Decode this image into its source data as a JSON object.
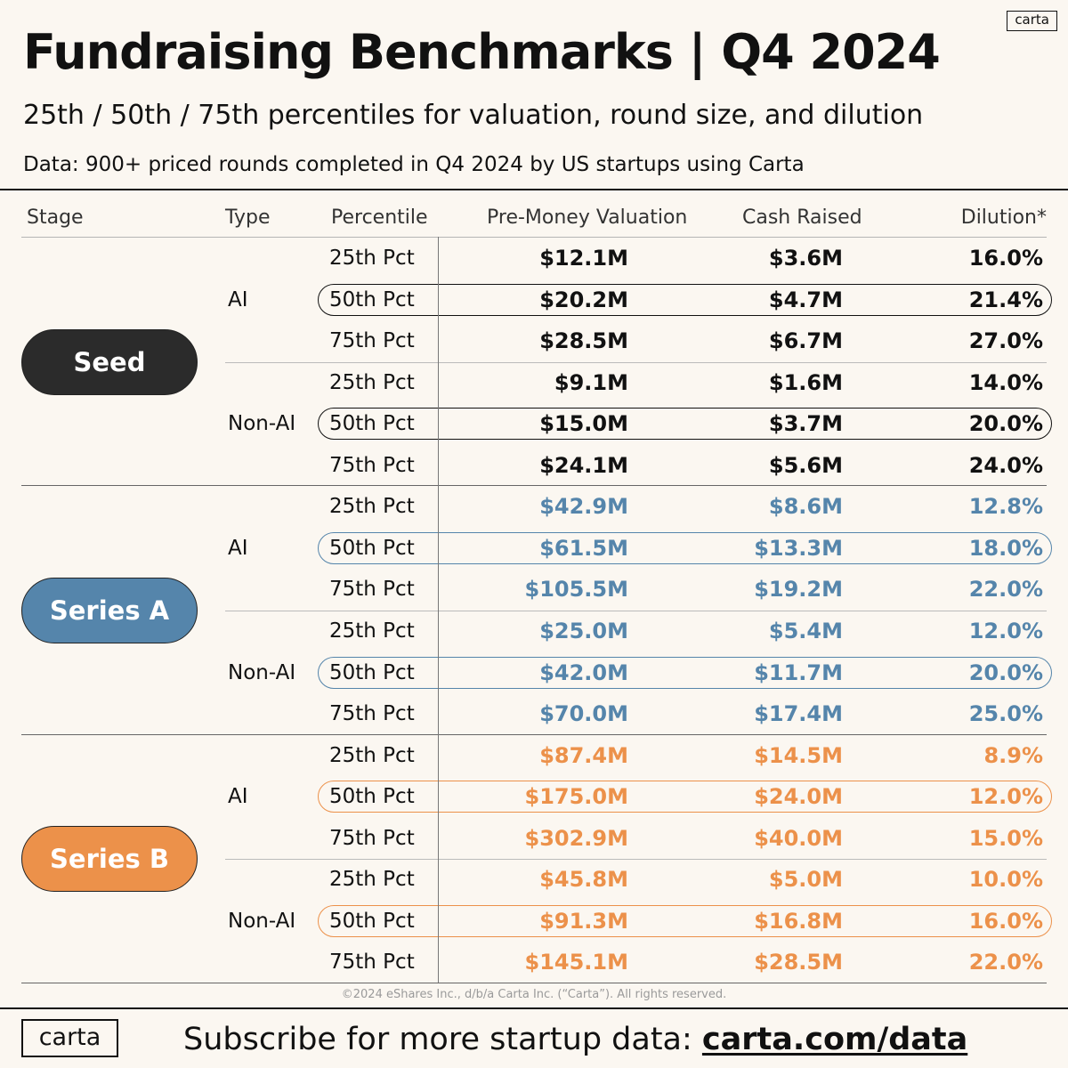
{
  "logo_text": "carta",
  "title": "Fundraising Benchmarks | Q4 2024",
  "subtitle": "25th / 50th / 75th percentiles for valuation, round size, and dilution",
  "source": "Data: 900+ priced rounds completed in Q4 2024 by US startups using Carta",
  "columns": {
    "stage": "Stage",
    "type": "Type",
    "percentile": "Percentile",
    "valuation": "Pre-Money Valuation",
    "cash": "Cash Raised",
    "dilution": "Dilution*"
  },
  "colors": {
    "seed": "#2b2b2b",
    "series_a": "#5585ab",
    "series_b": "#ec914a",
    "text": "#111111"
  },
  "chart_data": {
    "type": "table",
    "title": "Fundraising Benchmarks | Q4 2024",
    "columns": [
      "Stage",
      "Type",
      "Percentile",
      "Pre-Money Valuation",
      "Cash Raised",
      "Dilution*"
    ],
    "stages": [
      {
        "name": "Seed",
        "groups": [
          {
            "type": "AI",
            "rows": [
              {
                "pct": "25th Pct",
                "valuation": "$12.1M",
                "cash": "$3.6M",
                "dilution": "16.0%"
              },
              {
                "pct": "50th Pct",
                "valuation": "$20.2M",
                "cash": "$4.7M",
                "dilution": "21.4%"
              },
              {
                "pct": "75th Pct",
                "valuation": "$28.5M",
                "cash": "$6.7M",
                "dilution": "27.0%"
              }
            ]
          },
          {
            "type": "Non-AI",
            "rows": [
              {
                "pct": "25th Pct",
                "valuation": "$9.1M",
                "cash": "$1.6M",
                "dilution": "14.0%"
              },
              {
                "pct": "50th Pct",
                "valuation": "$15.0M",
                "cash": "$3.7M",
                "dilution": "20.0%"
              },
              {
                "pct": "75th Pct",
                "valuation": "$24.1M",
                "cash": "$5.6M",
                "dilution": "24.0%"
              }
            ]
          }
        ]
      },
      {
        "name": "Series A",
        "groups": [
          {
            "type": "AI",
            "rows": [
              {
                "pct": "25th Pct",
                "valuation": "$42.9M",
                "cash": "$8.6M",
                "dilution": "12.8%"
              },
              {
                "pct": "50th Pct",
                "valuation": "$61.5M",
                "cash": "$13.3M",
                "dilution": "18.0%"
              },
              {
                "pct": "75th Pct",
                "valuation": "$105.5M",
                "cash": "$19.2M",
                "dilution": "22.0%"
              }
            ]
          },
          {
            "type": "Non-AI",
            "rows": [
              {
                "pct": "25th Pct",
                "valuation": "$25.0M",
                "cash": "$5.4M",
                "dilution": "12.0%"
              },
              {
                "pct": "50th Pct",
                "valuation": "$42.0M",
                "cash": "$11.7M",
                "dilution": "20.0%"
              },
              {
                "pct": "75th Pct",
                "valuation": "$70.0M",
                "cash": "$17.4M",
                "dilution": "25.0%"
              }
            ]
          }
        ]
      },
      {
        "name": "Series B",
        "groups": [
          {
            "type": "AI",
            "rows": [
              {
                "pct": "25th Pct",
                "valuation": "$87.4M",
                "cash": "$14.5M",
                "dilution": "8.9%"
              },
              {
                "pct": "50th Pct",
                "valuation": "$175.0M",
                "cash": "$24.0M",
                "dilution": "12.0%"
              },
              {
                "pct": "75th Pct",
                "valuation": "$302.9M",
                "cash": "$40.0M",
                "dilution": "15.0%"
              }
            ]
          },
          {
            "type": "Non-AI",
            "rows": [
              {
                "pct": "25th Pct",
                "valuation": "$45.8M",
                "cash": "$5.0M",
                "dilution": "10.0%"
              },
              {
                "pct": "50th Pct",
                "valuation": "$91.3M",
                "cash": "$16.8M",
                "dilution": "16.0%"
              },
              {
                "pct": "75th Pct",
                "valuation": "$145.1M",
                "cash": "$28.5M",
                "dilution": "22.0%"
              }
            ]
          }
        ]
      }
    ]
  },
  "copyright": "©2024 eShares Inc., d/b/a Carta Inc. (“Carta”). All rights reserved.",
  "footer": {
    "logo": "carta",
    "cta_text": "Subscribe for more startup data: ",
    "cta_link": "carta.com/data"
  }
}
